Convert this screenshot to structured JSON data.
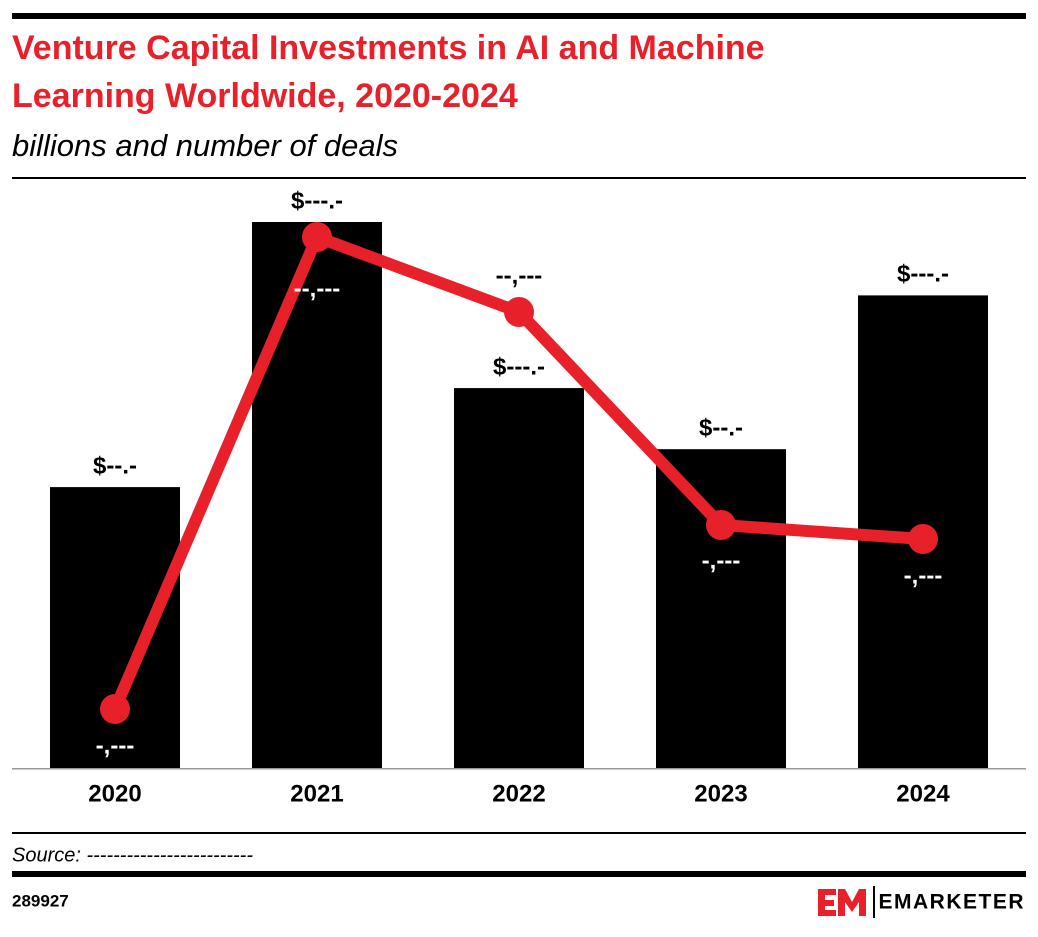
{
  "chart_data": {
    "type": "combo",
    "title": "Venture Capital Investments in AI and Machine Learning Worldwide, 2020-2024",
    "title_lines": [
      "Venture Capital Investments in AI and Machine",
      "Learning Worldwide, 2020-2024"
    ],
    "subtitle": "billions and number of deals",
    "categories": [
      "2020",
      "2021",
      "2022",
      "2023",
      "2024"
    ],
    "series": [
      {
        "type": "bar",
        "color": "#000000",
        "values": [
          80,
          155.5,
          108.2,
          90.8,
          134.6
        ],
        "value_labels": [
          "$--.-",
          "$---.-",
          "$---.-",
          "$--.-",
          "$---.-"
        ]
      },
      {
        "type": "line",
        "color": "#e8202a",
        "values": [
          1475,
          13275,
          11400,
          6075,
          5725
        ],
        "value_labels": [
          "-,---",
          "--,---",
          "--,---",
          "-,---",
          "-,---"
        ]
      }
    ],
    "source": "Source: -------------------------",
    "chart_id": "289927",
    "brand": "EMARKETER"
  }
}
